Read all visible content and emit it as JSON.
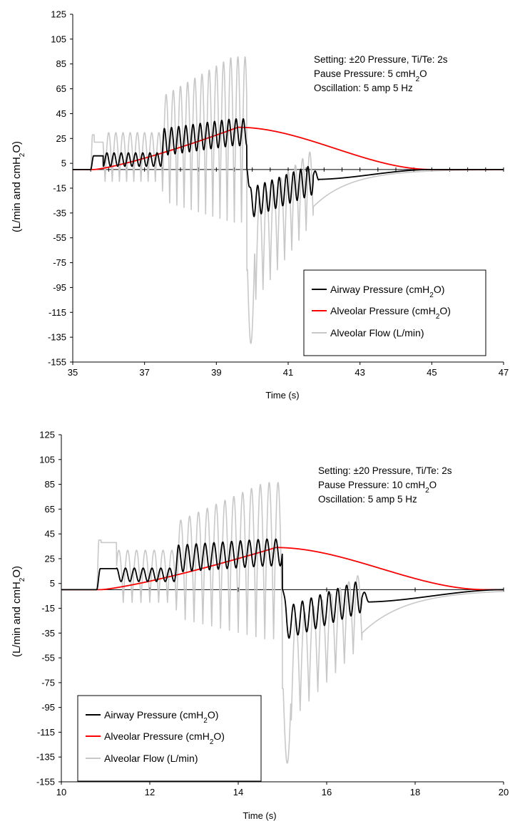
{
  "chart_data": [
    {
      "type": "line",
      "xlabel": "Time (s)",
      "ylabel_main": "(L/min and cmH",
      "ylabel_sub": "2",
      "ylabel_end": "O)",
      "xlim": [
        35,
        47
      ],
      "ylim": [
        -155,
        125
      ],
      "x_ticks": [
        "35",
        "37",
        "39",
        "41",
        "43",
        "45",
        "47"
      ],
      "y_ticks": [
        "125",
        "105",
        "85",
        "65",
        "45",
        "25",
        "5",
        "-15",
        "-35",
        "-55",
        "-75",
        "-95",
        "-115",
        "-135",
        "-155"
      ],
      "annotation": {
        "line1": "Setting: ±20 Pressure, Ti/Te: 2s",
        "line2_main": "Pause Pressure: 5 cmH",
        "line2_sub": "2",
        "line2_end": "O",
        "line3": "Oscillation: 5 amp 5 Hz"
      },
      "legend_position": "bottom-right",
      "series": [
        {
          "name_main": "Airway Pressure (cmH",
          "name_sub": "2",
          "name_end": "O)",
          "color": "#000000"
        },
        {
          "name_main": "Alveolar Pressure  (cmH",
          "name_sub": "2",
          "name_end": "O)",
          "color": "#ff0000"
        },
        {
          "name_main": "Alveolar Flow (L/min)",
          "name_sub": "",
          "name_end": "",
          "color": "#c8c8c8"
        }
      ],
      "sim": {
        "baseline": 0,
        "start": 35.5,
        "flowPlateau": 22,
        "flowPlateau2": 28,
        "flowPlateauEnd": 35.85,
        "airPlateau": 11,
        "airPlateauEnd": 35.9,
        "oscStart": 35.9,
        "ramp2": 37.5,
        "inspEnd": 39.85,
        "airOscAmp1": 6,
        "airBase1": 8,
        "airBase2": 22,
        "airBasePeak": 30,
        "airOscAmp2": 12,
        "flowAmp1": 28,
        "flowAmp2": 60,
        "flowPeak2": 95,
        "expDrop": -28,
        "expOscEnd": 41.7,
        "expAirBase": -8,
        "expAirAmp": 12,
        "expAirRecoverTo": -8,
        "expFlowMin": -148,
        "expFlowAmp": 55,
        "expFlowTail": -30,
        "tailEnd": 45.0,
        "alvPeak": 34,
        "alvPeakT": 39.6,
        "alvStart": 35.6,
        "alvZeroT": 45.0
      }
    },
    {
      "type": "line",
      "xlabel": "Time (s)",
      "ylabel_main": "(L/min and cmH",
      "ylabel_sub": "2",
      "ylabel_end": "O)",
      "xlim": [
        10,
        20
      ],
      "ylim": [
        -155,
        125
      ],
      "x_ticks": [
        "10",
        "12",
        "14",
        "16",
        "18",
        "20"
      ],
      "y_ticks": [
        "125",
        "105",
        "85",
        "65",
        "45",
        "25",
        "5",
        "-15",
        "-35",
        "-55",
        "-75",
        "-95",
        "-115",
        "-135",
        "-155"
      ],
      "annotation": {
        "line1": "Setting: ±20 Pressure, Ti/Te: 2s",
        "line2_main": "Pause Pressure: 10 cmH",
        "line2_sub": "2",
        "line2_end": "O",
        "line3": "Oscillation: 5 amp 5 Hz"
      },
      "legend_position": "bottom-left",
      "series": [
        {
          "name_main": "Airway Pressure (cmH",
          "name_sub": "2",
          "name_end": "O)",
          "color": "#000000"
        },
        {
          "name_main": "Alveolar Pressure  (cmH",
          "name_sub": "2",
          "name_end": "O)",
          "color": "#ff0000"
        },
        {
          "name_main": "Alveolar Flow (L/min)",
          "name_sub": "",
          "name_end": "",
          "color": "#c8c8c8"
        }
      ],
      "sim": {
        "baseline": 0,
        "start": 10.8,
        "flowPlateau": 38,
        "flowPlateau2": 40,
        "flowPlateauEnd": 11.25,
        "airPlateau": 17,
        "airPlateauEnd": 11.3,
        "oscStart": 11.3,
        "ramp2": 12.6,
        "inspEnd": 15.0,
        "airOscAmp1": 6,
        "airBase1": 12,
        "airBase2": 25,
        "airBasePeak": 30,
        "airOscAmp2": 12,
        "flowAmp1": 30,
        "flowAmp2": 55,
        "flowPeak2": 90,
        "expDrop": -28,
        "expOscEnd": 16.8,
        "expAirBase": -5,
        "expAirAmp": 13,
        "expAirRecoverTo": -10,
        "expFlowMin": -145,
        "expFlowAmp": 55,
        "expFlowTail": -35,
        "tailEnd": 20.0,
        "alvPeak": 34,
        "alvPeakT": 14.85,
        "alvStart": 10.9,
        "alvZeroT": 19.6
      }
    }
  ]
}
